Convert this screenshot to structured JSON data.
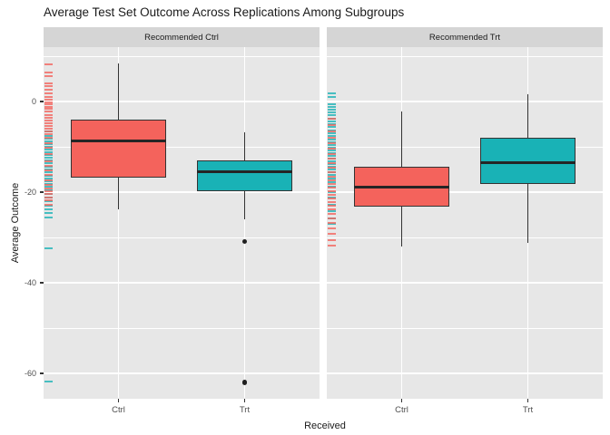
{
  "title": "Average Test Set Outcome Across Replications Among Subgroups",
  "colors": {
    "ctrl_fill": "#f4635c",
    "trt_fill": "#19b2b6",
    "box_border": "#333333",
    "median_line": "#252525",
    "outlier_dot": "#1f1f1f",
    "panel_bg": "#e7e7e7",
    "strip_bg": "#d5d5d5",
    "gridline": "#ffffff",
    "tick_label": "#4d4d4d",
    "text": "#1a1a1a"
  },
  "chart_data": {
    "type": "boxplot",
    "title": "Average Test Set Outcome Across Replications Among Subgroups",
    "xlabel": "Received",
    "ylabel": "Average Outcome",
    "ylim": [
      -65.6,
      12
    ],
    "yticks": [
      0,
      -20,
      -40,
      -60
    ],
    "yticklabels": [
      "0",
      "-20",
      "-40",
      "-60"
    ],
    "minor_gridlines": [
      10,
      -10,
      -30,
      -50
    ],
    "grid": "on",
    "legend_position": "none",
    "facets": [
      {
        "label": "Recommended Ctrl",
        "categories": [
          "Ctrl",
          "Trt"
        ],
        "boxes": [
          {
            "group": "Ctrl",
            "color_key": "ctrl_fill",
            "whisker_high": 8.4,
            "q3": -3.9,
            "median": -8.7,
            "q1": -16.8,
            "whisker_low": -23.8,
            "outliers": []
          },
          {
            "group": "Trt",
            "color_key": "trt_fill",
            "whisker_high": -6.8,
            "q3": -12.9,
            "median": -15.5,
            "q1": -19.7,
            "whisker_low": -25.9,
            "outliers": [
              -30.9,
              -62.0
            ]
          }
        ],
        "rug": {
          "ctrl": [
            8.3,
            6.4,
            5.7,
            4.0,
            3.4,
            2.6,
            1.8,
            1.0,
            0.4,
            -0.1,
            -0.6,
            -1.1,
            -1.6,
            -2.2,
            -3.0,
            -3.6,
            -4.2,
            -4.8,
            -5.4,
            -6.0,
            -6.6,
            -7.2,
            -8.0,
            -9.2,
            -10.2,
            -11.6,
            -13.2,
            -14.2,
            -15.2,
            -16.2,
            -17.4,
            -18.4,
            -19.2,
            -19.8,
            -20.4,
            -21.2,
            -21.8,
            -22.8
          ],
          "trt": [
            -6.6,
            -7.6,
            -8.2,
            -8.8,
            -9.4,
            -10.0,
            -10.6,
            -11.2,
            -11.8,
            -12.4,
            -13.0,
            -13.6,
            -14.4,
            -15.0,
            -15.6,
            -16.4,
            -17.0,
            -17.6,
            -18.2,
            -18.8,
            -19.6,
            -20.4,
            -21.2,
            -22.0,
            -23.0,
            -23.8,
            -24.6,
            -25.6,
            -32.4,
            -61.8
          ]
        }
      },
      {
        "label": "Recommended Trt",
        "categories": [
          "Ctrl",
          "Trt"
        ],
        "boxes": [
          {
            "group": "Ctrl",
            "color_key": "ctrl_fill",
            "whisker_high": -2.2,
            "q3": -14.3,
            "median": -18.9,
            "q1": -23.2,
            "whisker_low": -32.0,
            "outliers": []
          },
          {
            "group": "Trt",
            "color_key": "trt_fill",
            "whisker_high": 1.6,
            "q3": -8.0,
            "median": -13.5,
            "q1": -18.2,
            "whisker_low": -31.2,
            "outliers": []
          }
        ],
        "rug": {
          "ctrl": [
            -3.8,
            -5.2,
            -6.6,
            -8.0,
            -9.2,
            -10.4,
            -11.6,
            -12.6,
            -13.6,
            -14.6,
            -15.6,
            -16.6,
            -17.4,
            -18.2,
            -19.0,
            -19.8,
            -20.6,
            -21.4,
            -22.2,
            -23.0,
            -23.8,
            -24.8,
            -25.8,
            -26.8,
            -28.0,
            -29.2,
            -30.6,
            -31.8
          ],
          "trt": [
            1.8,
            1.0,
            -0.6,
            -1.2,
            -1.8,
            -2.4,
            -3.0,
            -3.8,
            -4.4,
            -5.0,
            -5.6,
            -6.4,
            -7.0,
            -7.6,
            -8.4,
            -9.0,
            -9.6,
            -10.2,
            -10.8,
            -11.4,
            -12.0,
            -12.6,
            -13.2,
            -13.8,
            -14.4,
            -15.0,
            -15.6,
            -16.2,
            -17.0,
            -17.8,
            -18.8,
            -20.0,
            -21.2,
            -22.8,
            -24.2,
            -25.8,
            -27.0
          ]
        }
      }
    ]
  }
}
